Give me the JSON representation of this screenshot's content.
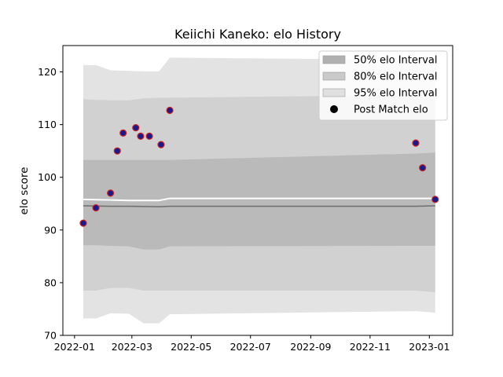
{
  "chart_data": {
    "type": "line",
    "title": "Keiichi Kaneko: elo History",
    "xlabel": "",
    "ylabel": "elo score",
    "xlim": [
      "2021-12-20",
      "2023-01-25"
    ],
    "ylim": [
      70,
      125
    ],
    "x_ticks": [
      "2022-01",
      "2022-03",
      "2022-05",
      "2022-07",
      "2022-09",
      "2022-11",
      "2023-01"
    ],
    "y_ticks": [
      70,
      80,
      90,
      100,
      110,
      120
    ],
    "grid": false,
    "legend_position": "top-right",
    "legend": [
      {
        "label": "50% elo Interval",
        "kind": "patch",
        "color": "#b0b0b0"
      },
      {
        "label": "80% elo Interval",
        "kind": "patch",
        "color": "#c9c9c9"
      },
      {
        "label": "95% elo Interval",
        "kind": "patch",
        "color": "#e0e0e0"
      },
      {
        "label": "Post Match elo",
        "kind": "marker",
        "color": "#000000"
      }
    ],
    "bands": [
      {
        "name": "95% elo Interval",
        "color": "#e3e3e3",
        "x": [
          "2022-01-10",
          "2022-01-23",
          "2022-02-07",
          "2022-02-26",
          "2022-03-13",
          "2022-03-29",
          "2022-04-09",
          "2022-12-18",
          "2023-01-07"
        ],
        "upper": [
          121.3,
          121.3,
          120.3,
          120.2,
          120.1,
          120.1,
          122.7,
          122.3,
          122.3
        ],
        "lower": [
          73.2,
          73.2,
          74.2,
          74.1,
          72.3,
          72.3,
          74.0,
          74.6,
          74.3
        ]
      },
      {
        "name": "80% elo Interval",
        "color": "#d1d1d1",
        "x": [
          "2022-01-10",
          "2022-01-23",
          "2022-02-07",
          "2022-02-26",
          "2022-03-13",
          "2022-03-29",
          "2022-04-09",
          "2022-12-18",
          "2023-01-07"
        ],
        "upper": [
          114.8,
          114.7,
          114.6,
          114.6,
          115.0,
          115.1,
          115.1,
          115.6,
          115.6
        ],
        "lower": [
          78.5,
          78.5,
          79.0,
          79.0,
          78.5,
          78.5,
          78.5,
          78.5,
          78.2
        ]
      },
      {
        "name": "50% elo Interval",
        "color": "#bababa",
        "x": [
          "2022-01-10",
          "2022-01-23",
          "2022-02-07",
          "2022-02-26",
          "2022-03-13",
          "2022-03-29",
          "2022-04-09",
          "2022-12-18",
          "2023-01-07"
        ],
        "upper": [
          103.3,
          103.3,
          103.3,
          103.3,
          103.3,
          103.3,
          103.3,
          104.5,
          104.7
        ],
        "lower": [
          87.1,
          87.1,
          87.0,
          86.9,
          86.3,
          86.3,
          86.9,
          87.0,
          87.0
        ]
      }
    ],
    "lines": [
      {
        "name": "white",
        "color": "#ffffff",
        "x": [
          "2022-01-10",
          "2022-02-07",
          "2022-02-26",
          "2022-03-29",
          "2022-04-09",
          "2022-12-18",
          "2023-01-07"
        ],
        "y": [
          95.8,
          95.7,
          95.6,
          95.6,
          96.0,
          96.0,
          96.0
        ]
      },
      {
        "name": "gray",
        "color": "#6e6e6e",
        "x": [
          "2022-01-10",
          "2022-02-07",
          "2022-02-26",
          "2022-03-29",
          "2022-04-09",
          "2022-12-18",
          "2023-01-07"
        ],
        "y": [
          94.6,
          94.5,
          94.5,
          94.4,
          94.5,
          94.5,
          94.6
        ]
      }
    ],
    "series": [
      {
        "name": "Post Match elo",
        "x": [
          "2022-01-10",
          "2022-01-23",
          "2022-02-07",
          "2022-02-14",
          "2022-02-20",
          "2022-03-05",
          "2022-03-10",
          "2022-03-19",
          "2022-03-31",
          "2022-04-09",
          "2022-12-18",
          "2022-12-25",
          "2023-01-07"
        ],
        "y": [
          91.3,
          94.2,
          97.0,
          105.0,
          108.4,
          109.4,
          107.8,
          107.8,
          106.2,
          112.7,
          106.5,
          101.8,
          95.8
        ]
      }
    ],
    "marker": {
      "fill": "#1a1a8c",
      "edge": "#cc2222"
    }
  }
}
